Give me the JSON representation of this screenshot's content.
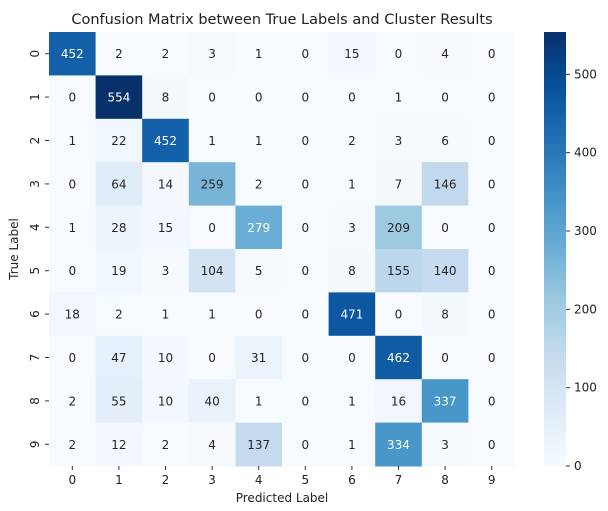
{
  "chart_data": {
    "type": "heatmap",
    "title": "Confusion Matrix between True Labels and Cluster Results",
    "xlabel": "Predicted Label",
    "ylabel": "True Label",
    "x_categories": [
      "0",
      "1",
      "2",
      "3",
      "4",
      "5",
      "6",
      "7",
      "8",
      "9"
    ],
    "y_categories": [
      "0",
      "1",
      "2",
      "3",
      "4",
      "5",
      "6",
      "7",
      "8",
      "9"
    ],
    "values": [
      [
        452,
        2,
        2,
        3,
        1,
        0,
        15,
        0,
        4,
        0
      ],
      [
        0,
        554,
        8,
        0,
        0,
        0,
        0,
        1,
        0,
        0
      ],
      [
        1,
        22,
        452,
        1,
        1,
        0,
        2,
        3,
        6,
        0
      ],
      [
        0,
        64,
        14,
        259,
        2,
        0,
        1,
        7,
        146,
        0
      ],
      [
        1,
        28,
        15,
        0,
        279,
        0,
        3,
        209,
        0,
        0
      ],
      [
        0,
        19,
        3,
        104,
        5,
        0,
        8,
        155,
        140,
        0
      ],
      [
        18,
        2,
        1,
        1,
        0,
        0,
        471,
        0,
        8,
        0
      ],
      [
        0,
        47,
        10,
        0,
        31,
        0,
        0,
        462,
        0,
        0
      ],
      [
        2,
        55,
        10,
        40,
        1,
        0,
        1,
        16,
        337,
        0
      ],
      [
        2,
        12,
        2,
        4,
        137,
        0,
        1,
        334,
        3,
        0
      ]
    ],
    "colorbar": {
      "min": 0,
      "max": 554,
      "ticks": [
        0,
        100,
        200,
        300,
        400,
        500
      ],
      "colormap": "Blues",
      "low_color": "#f7fbff",
      "high_color": "#08306b"
    },
    "annotation_threshold": 277
  }
}
